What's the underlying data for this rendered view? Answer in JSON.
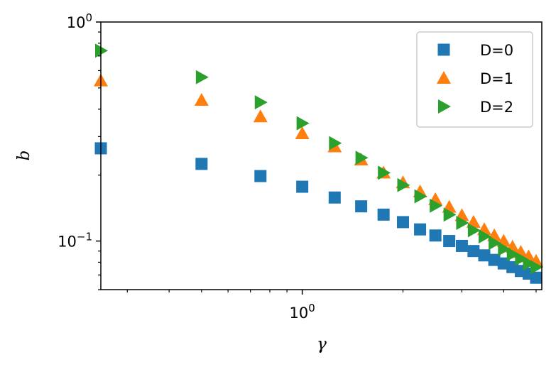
{
  "chart_data": {
    "type": "scatter",
    "xlabel": "γ",
    "ylabel": "b",
    "xscale": "log",
    "yscale": "log",
    "xlim": [
      0.25,
      5.2
    ],
    "ylim": [
      0.06,
      1.0
    ],
    "x_ticks": [
      {
        "value": 1.0,
        "base": "10",
        "exp": "0"
      }
    ],
    "y_ticks": [
      {
        "value": 1.0,
        "base": "10",
        "exp": "0"
      },
      {
        "value": 0.1,
        "base": "10",
        "exp": "−1"
      }
    ],
    "grid": false,
    "legend_position": "top-right",
    "x": [
      0.25,
      0.5,
      0.75,
      1.0,
      1.25,
      1.5,
      1.75,
      2.0,
      2.25,
      2.5,
      2.75,
      3.0,
      3.25,
      3.5,
      3.75,
      4.0,
      4.25,
      4.5,
      4.75,
      5.0
    ],
    "series": [
      {
        "name": "D=0",
        "marker": "square",
        "color": "#1f77b4",
        "values": [
          0.265,
          0.225,
          0.198,
          0.177,
          0.158,
          0.144,
          0.132,
          0.122,
          0.113,
          0.106,
          0.1,
          0.095,
          0.09,
          0.086,
          0.082,
          0.079,
          0.076,
          0.073,
          0.071,
          0.068
        ]
      },
      {
        "name": "D=1",
        "marker": "triangle-up",
        "color": "#ff7f0e",
        "values": [
          0.54,
          0.44,
          0.37,
          0.31,
          0.27,
          0.235,
          0.205,
          0.185,
          0.168,
          0.155,
          0.143,
          0.131,
          0.122,
          0.113,
          0.106,
          0.1,
          0.094,
          0.089,
          0.085,
          0.081
        ]
      },
      {
        "name": "D=2",
        "marker": "triangle-right",
        "color": "#2ca02c",
        "values": [
          0.74,
          0.56,
          0.43,
          0.345,
          0.28,
          0.24,
          0.205,
          0.18,
          0.16,
          0.145,
          0.132,
          0.121,
          0.112,
          0.105,
          0.098,
          0.092,
          0.087,
          0.083,
          0.079,
          0.076
        ]
      }
    ]
  }
}
